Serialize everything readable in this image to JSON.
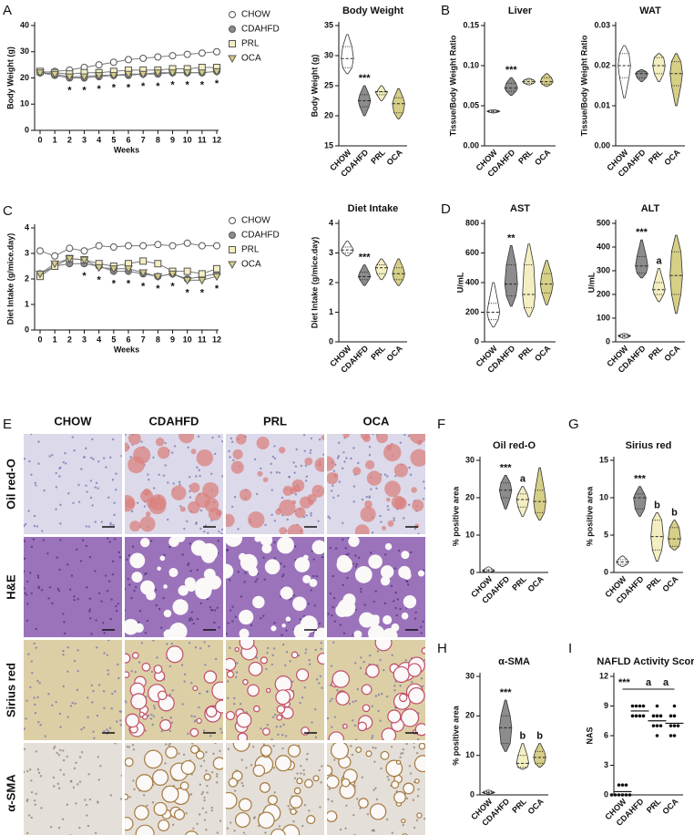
{
  "chart_data": [
    {
      "type": "line",
      "panel": "A",
      "ylabel": "Body Weight (g)",
      "xlabel": "Weeks",
      "x": [
        0,
        1,
        2,
        3,
        4,
        5,
        6,
        7,
        8,
        9,
        10,
        11,
        12
      ],
      "xlim": [
        0,
        12
      ],
      "xticks": [
        0,
        1,
        2,
        3,
        4,
        5,
        6,
        7,
        8,
        9,
        10,
        11,
        12
      ],
      "ylim": [
        0,
        40
      ],
      "yticks": [
        0,
        10,
        20,
        30,
        40
      ],
      "series": [
        {
          "name": "CHOW",
          "color": "#ffffff",
          "marker": "circle",
          "values": [
            22,
            22.5,
            23,
            24,
            25,
            26,
            27,
            27.5,
            28,
            28.5,
            29,
            29.5,
            30
          ]
        },
        {
          "name": "CDAHFD",
          "color": "#8c8c8c",
          "marker": "circle",
          "values": [
            22,
            21,
            20,
            20,
            20.5,
            21,
            21,
            21.5,
            21.5,
            22,
            22,
            22,
            22.5
          ]
        },
        {
          "name": "PRL",
          "color": "#f4efc2",
          "marker": "square",
          "values": [
            22.5,
            22,
            21.5,
            22,
            22,
            22.5,
            23,
            23,
            23,
            23.5,
            23.5,
            24,
            24
          ]
        },
        {
          "name": "OCA",
          "color": "#d6cf86",
          "marker": "triangle",
          "values": [
            22,
            21.5,
            20.5,
            20.5,
            21,
            21,
            21.5,
            21.5,
            22,
            22,
            22,
            22,
            22.5
          ]
        }
      ],
      "annotations": [
        null,
        null,
        "*",
        "*",
        "*",
        "*",
        "*",
        "*",
        "*",
        "*",
        "*",
        "*",
        "*"
      ]
    },
    {
      "type": "violin",
      "title": "Body Weight",
      "ylabel": "Body Weight (g)",
      "categories": [
        "CHOW",
        "CDAHFD",
        "PRL",
        "OCA"
      ],
      "colors": [
        "#ffffff",
        "#8c8c8c",
        "#f4efc2",
        "#d6cf86"
      ],
      "ylim": [
        15,
        35
      ],
      "yticks": [
        15,
        20,
        25,
        30,
        35
      ],
      "min": [
        27,
        20,
        22.5,
        19.5
      ],
      "q1": [
        28,
        21.5,
        23.5,
        20.5
      ],
      "median": [
        29.5,
        22.5,
        24,
        22
      ],
      "q3": [
        31.5,
        23.5,
        24,
        23
      ],
      "max": [
        33.5,
        25,
        25,
        24.5
      ],
      "annotations": [
        null,
        "***",
        null,
        null
      ]
    },
    {
      "type": "violin",
      "panel": "B",
      "title": "Liver",
      "ylabel": "Tissue/Body Weight Ratio",
      "categories": [
        "CHOW",
        "CDAHFD",
        "PRL",
        "OCA"
      ],
      "colors": [
        "#ffffff",
        "#8c8c8c",
        "#f4efc2",
        "#d6cf86"
      ],
      "ylim": [
        0,
        0.15
      ],
      "yticks": [
        {
          "value": 0,
          "label": "0.00"
        },
        0.05,
        {
          "value": 0.1,
          "label": "0.10"
        },
        0.15
      ],
      "min": [
        0.041,
        0.063,
        0.076,
        0.074
      ],
      "q1": [
        0.042,
        0.068,
        0.078,
        0.077
      ],
      "median": [
        0.043,
        0.072,
        0.08,
        0.08
      ],
      "q3": [
        0.044,
        0.078,
        0.082,
        0.085
      ],
      "max": [
        0.045,
        0.085,
        0.084,
        0.09
      ],
      "annotations": [
        null,
        "***",
        null,
        null
      ]
    },
    {
      "type": "violin",
      "title": "WAT",
      "ylabel": "Tissue/Body Weight Ratio",
      "categories": [
        "CHOW",
        "CDAHFD",
        "PRL",
        "OCA"
      ],
      "colors": [
        "#ffffff",
        "#8c8c8c",
        "#f4efc2",
        "#d6cf86"
      ],
      "ylim": [
        0,
        0.03
      ],
      "yticks": [
        {
          "value": 0,
          "label": "0.00"
        },
        0.01,
        0.02,
        0.03
      ],
      "min": [
        0.012,
        0.016,
        0.016,
        0.01
      ],
      "q1": [
        0.017,
        0.017,
        0.018,
        0.015
      ],
      "median": [
        0.02,
        0.018,
        0.02,
        0.018
      ],
      "q3": [
        0.023,
        0.0185,
        0.022,
        0.021
      ],
      "max": [
        0.025,
        0.019,
        0.023,
        0.023
      ],
      "annotations": [
        null,
        null,
        null,
        null
      ]
    },
    {
      "type": "line",
      "panel": "C",
      "ylabel": "Diet Intake (g/mice.day)",
      "xlabel": "Weeks",
      "x": [
        0,
        1,
        2,
        3,
        4,
        5,
        6,
        7,
        8,
        9,
        10,
        11,
        12
      ],
      "xlim": [
        0,
        12
      ],
      "xticks": [
        0,
        1,
        2,
        3,
        4,
        5,
        6,
        7,
        8,
        9,
        10,
        11,
        12
      ],
      "ylim": [
        0,
        4
      ],
      "yticks": [
        0,
        1,
        2,
        3,
        4
      ],
      "series": [
        {
          "name": "CHOW",
          "color": "#ffffff",
          "marker": "circle",
          "values": [
            3.1,
            2.9,
            3.2,
            3.1,
            3.3,
            3.25,
            3.3,
            3.3,
            3.35,
            3.3,
            3.4,
            3.3,
            3.3
          ]
        },
        {
          "name": "CDAHFD",
          "color": "#8c8c8c",
          "marker": "circle",
          "values": [
            2.2,
            2.5,
            2.6,
            2.6,
            2.5,
            2.3,
            2.3,
            2.2,
            2.1,
            2.2,
            2.0,
            2.1,
            2.2
          ]
        },
        {
          "name": "PRL",
          "color": "#f4efc2",
          "marker": "square",
          "values": [
            2.1,
            2.5,
            2.8,
            2.75,
            2.6,
            2.5,
            2.6,
            2.7,
            2.6,
            2.3,
            2.3,
            2.2,
            2.4
          ]
        },
        {
          "name": "OCA",
          "color": "#d6cf86",
          "marker": "triangle",
          "values": [
            2.2,
            2.6,
            2.8,
            2.75,
            2.45,
            2.4,
            2.4,
            2.25,
            2.1,
            2.2,
            1.95,
            1.95,
            2.1
          ]
        }
      ],
      "annotations": [
        null,
        null,
        null,
        "*",
        "*",
        "*",
        "*",
        "*",
        "*",
        "*",
        "*",
        "*",
        "*"
      ]
    },
    {
      "type": "violin",
      "title": "Diet Intake",
      "ylabel": "Diet Intake (g/mice.day)",
      "categories": [
        "CHOW",
        "CDAHFD",
        "PRL",
        "OCA"
      ],
      "colors": [
        "#ffffff",
        "#8c8c8c",
        "#f4efc2",
        "#d6cf86"
      ],
      "ylim": [
        0,
        4
      ],
      "yticks": [
        0,
        1,
        2,
        3,
        4
      ],
      "min": [
        2.9,
        1.9,
        2.1,
        1.9
      ],
      "q1": [
        3.0,
        2.1,
        2.3,
        2.1
      ],
      "median": [
        3.1,
        2.2,
        2.5,
        2.3
      ],
      "q3": [
        3.2,
        2.35,
        2.6,
        2.5
      ],
      "max": [
        3.4,
        2.6,
        2.8,
        2.8
      ],
      "annotations": [
        null,
        "***",
        null,
        null
      ]
    },
    {
      "type": "violin",
      "panel": "D",
      "title": "AST",
      "ylabel": "U/mL",
      "categories": [
        "CHOW",
        "CDAHFD",
        "PRL",
        "OCA"
      ],
      "colors": [
        "#ffffff",
        "#8c8c8c",
        "#f4efc2",
        "#d6cf86"
      ],
      "ylim": [
        0,
        800
      ],
      "yticks": [
        0,
        200,
        400,
        600,
        800
      ],
      "min": [
        100,
        240,
        170,
        250
      ],
      "q1": [
        150,
        310,
        230,
        330
      ],
      "median": [
        200,
        390,
        320,
        390
      ],
      "q3": [
        260,
        520,
        520,
        460
      ],
      "max": [
        400,
        650,
        660,
        550
      ],
      "annotations": [
        null,
        "**",
        null,
        null
      ]
    },
    {
      "type": "violin",
      "title": "ALT",
      "ylabel": "U/mL",
      "categories": [
        "CHOW",
        "CDAHFD",
        "PRL",
        "OCA"
      ],
      "colors": [
        "#ffffff",
        "#8c8c8c",
        "#f4efc2",
        "#d6cf86"
      ],
      "ylim": [
        0,
        500
      ],
      "yticks": [
        0,
        100,
        200,
        300,
        400,
        500
      ],
      "min": [
        15,
        270,
        170,
        120
      ],
      "q1": [
        20,
        290,
        200,
        200
      ],
      "median": [
        25,
        320,
        220,
        280
      ],
      "q3": [
        30,
        360,
        250,
        380
      ],
      "max": [
        35,
        430,
        310,
        450
      ],
      "annotations": [
        null,
        "***",
        "a",
        null
      ]
    },
    {
      "type": "violin",
      "panel": "F",
      "title": "Oil red-O",
      "ylabel": "% positive area",
      "categories": [
        "CHOW",
        "CDAHFD",
        "PRL",
        "OCA"
      ],
      "colors": [
        "#ffffff",
        "#8c8c8c",
        "#f4efc2",
        "#d6cf86"
      ],
      "ylim": [
        0,
        30
      ],
      "yticks": [
        0,
        10,
        20,
        30
      ],
      "min": [
        0,
        17,
        15,
        14
      ],
      "q1": [
        0.2,
        20,
        17.5,
        16
      ],
      "median": [
        0.5,
        22,
        19.5,
        19
      ],
      "q3": [
        0.8,
        24,
        21,
        22
      ],
      "max": [
        1.5,
        26,
        23,
        28
      ],
      "annotations": [
        null,
        "***",
        "a",
        null
      ]
    },
    {
      "type": "violin",
      "panel": "G",
      "title": "Sirius red",
      "ylabel": "% positive area",
      "categories": [
        "CHOW",
        "CDAHFD",
        "PRL",
        "OCA"
      ],
      "colors": [
        "#ffffff",
        "#8c8c8c",
        "#f4efc2",
        "#d6cf86"
      ],
      "ylim": [
        0,
        15
      ],
      "yticks": [
        0,
        5,
        10,
        15
      ],
      "min": [
        0.8,
        7.5,
        1.5,
        3
      ],
      "q1": [
        1.1,
        8.5,
        3,
        3.5
      ],
      "median": [
        1.4,
        10,
        4.8,
        4.5
      ],
      "q3": [
        1.7,
        10.5,
        7,
        6
      ],
      "max": [
        2.2,
        11.5,
        8,
        7
      ],
      "annotations": [
        null,
        "***",
        "b",
        "b"
      ]
    },
    {
      "type": "violin",
      "panel": "H",
      "title": "α-SMA",
      "ylabel": "% positive area",
      "categories": [
        "CHOW",
        "CDAHFD",
        "PRL",
        "OCA"
      ],
      "colors": [
        "#ffffff",
        "#8c8c8c",
        "#f4efc2",
        "#d6cf86"
      ],
      "ylim": [
        0,
        30
      ],
      "yticks": [
        0,
        10,
        20,
        30
      ],
      "min": [
        0.2,
        11,
        6.5,
        7
      ],
      "q1": [
        0.4,
        13,
        7,
        8
      ],
      "median": [
        0.6,
        17,
        8,
        9.5
      ],
      "q3": [
        0.8,
        20,
        10,
        11
      ],
      "max": [
        1.2,
        24,
        13,
        13
      ],
      "annotations": [
        null,
        "***",
        "b",
        "b"
      ]
    },
    {
      "type": "dot",
      "panel": "I",
      "title": "NAFLD Activity Score",
      "ylabel": "NAS",
      "categories": [
        "CHOW",
        "CDAHFD",
        "PRL",
        "OCA"
      ],
      "color": "#111111",
      "ylim": [
        0,
        12
      ],
      "yticks": [
        0,
        3,
        6,
        9,
        12
      ],
      "points": [
        [
          0,
          0,
          0,
          0,
          0,
          0,
          1,
          1,
          1
        ],
        [
          8,
          8,
          8,
          8,
          9,
          9,
          9,
          9
        ],
        [
          6,
          7,
          7,
          7,
          8,
          8,
          8,
          9
        ],
        [
          6,
          6,
          7,
          7,
          7,
          8,
          8,
          9
        ]
      ],
      "means": [
        0.33,
        8.5,
        7.5,
        7.25
      ],
      "annotations": [
        null,
        "***",
        "a",
        "a"
      ]
    }
  ],
  "histology": {
    "panel": "E",
    "columns": [
      "CHOW",
      "CDAHFD",
      "PRL",
      "OCA"
    ],
    "rows": [
      "Oil red-O",
      "H&E",
      "Sirius red",
      "α-SMA"
    ]
  }
}
